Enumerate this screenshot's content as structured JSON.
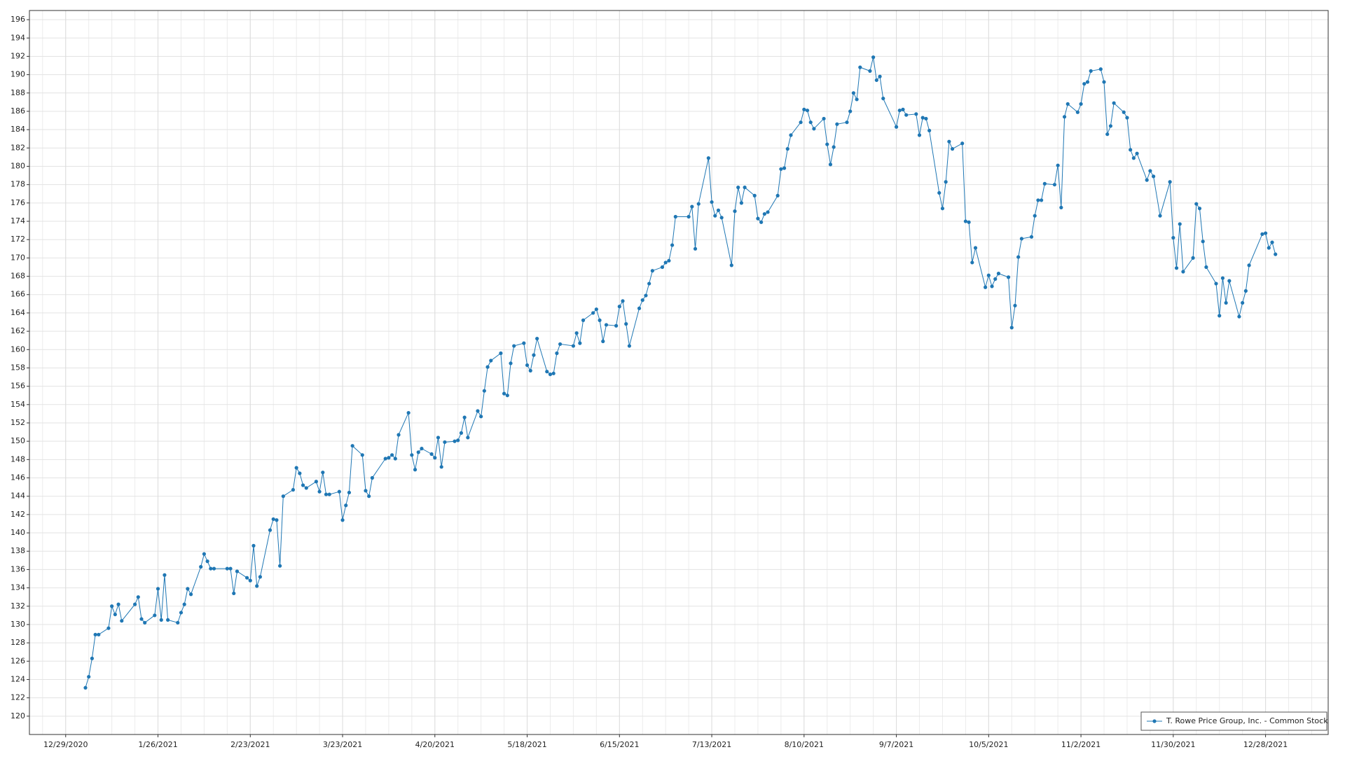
{
  "chart_data": {
    "type": "line",
    "legend": "lower right",
    "grid": true,
    "xlim": [
      "12/18/2020",
      "1/16/2022"
    ],
    "xticks": [
      "12/29/2020",
      "1/26/2021",
      "2/23/2021",
      "3/23/2021",
      "4/20/2021",
      "5/18/2021",
      "6/15/2021",
      "7/13/2021",
      "8/10/2021",
      "9/7/2021",
      "10/5/2021",
      "11/2/2021",
      "11/30/2021",
      "12/28/2021"
    ],
    "ylim": [
      118,
      197
    ],
    "yticks": [
      120,
      122,
      124,
      126,
      128,
      130,
      132,
      134,
      136,
      138,
      140,
      142,
      144,
      146,
      148,
      150,
      152,
      154,
      156,
      158,
      160,
      162,
      164,
      166,
      168,
      170,
      172,
      174,
      176,
      178,
      180,
      182,
      184,
      186,
      188,
      190,
      192,
      194,
      196
    ],
    "x": [
      "1/4/2021",
      "1/5/2021",
      "1/6/2021",
      "1/7/2021",
      "1/8/2021",
      "1/11/2021",
      "1/12/2021",
      "1/13/2021",
      "1/14/2021",
      "1/15/2021",
      "1/19/2021",
      "1/20/2021",
      "1/21/2021",
      "1/22/2021",
      "1/25/2021",
      "1/26/2021",
      "1/27/2021",
      "1/28/2021",
      "1/29/2021",
      "2/1/2021",
      "2/2/2021",
      "2/3/2021",
      "2/4/2021",
      "2/5/2021",
      "2/8/2021",
      "2/9/2021",
      "2/10/2021",
      "2/11/2021",
      "2/12/2021",
      "2/16/2021",
      "2/17/2021",
      "2/18/2021",
      "2/19/2021",
      "2/22/2021",
      "2/23/2021",
      "2/24/2021",
      "2/25/2021",
      "2/26/2021",
      "3/1/2021",
      "3/2/2021",
      "3/3/2021",
      "3/4/2021",
      "3/5/2021",
      "3/8/2021",
      "3/9/2021",
      "3/10/2021",
      "3/11/2021",
      "3/12/2021",
      "3/15/2021",
      "3/16/2021",
      "3/17/2021",
      "3/18/2021",
      "3/19/2021",
      "3/22/2021",
      "3/23/2021",
      "3/24/2021",
      "3/25/2021",
      "3/26/2021",
      "3/29/2021",
      "3/30/2021",
      "3/31/2021",
      "4/1/2021",
      "4/5/2021",
      "4/6/2021",
      "4/7/2021",
      "4/8/2021",
      "4/9/2021",
      "4/12/2021",
      "4/13/2021",
      "4/14/2021",
      "4/15/2021",
      "4/16/2021",
      "4/19/2021",
      "4/20/2021",
      "4/21/2021",
      "4/22/2021",
      "4/23/2021",
      "4/26/2021",
      "4/27/2021",
      "4/28/2021",
      "4/29/2021",
      "4/30/2021",
      "5/3/2021",
      "5/4/2021",
      "5/5/2021",
      "5/6/2021",
      "5/7/2021",
      "5/10/2021",
      "5/11/2021",
      "5/12/2021",
      "5/13/2021",
      "5/14/2021",
      "5/17/2021",
      "5/18/2021",
      "5/19/2021",
      "5/20/2021",
      "5/21/2021",
      "5/24/2021",
      "5/25/2021",
      "5/26/2021",
      "5/27/2021",
      "5/28/2021",
      "6/1/2021",
      "6/2/2021",
      "6/3/2021",
      "6/4/2021",
      "6/7/2021",
      "6/8/2021",
      "6/9/2021",
      "6/10/2021",
      "6/11/2021",
      "6/14/2021",
      "6/15/2021",
      "6/16/2021",
      "6/17/2021",
      "6/18/2021",
      "6/21/2021",
      "6/22/2021",
      "6/23/2021",
      "6/24/2021",
      "6/25/2021",
      "6/28/2021",
      "6/29/2021",
      "6/30/2021",
      "7/1/2021",
      "7/2/2021",
      "7/6/2021",
      "7/7/2021",
      "7/8/2021",
      "7/9/2021",
      "7/12/2021",
      "7/13/2021",
      "7/14/2021",
      "7/15/2021",
      "7/16/2021",
      "7/19/2021",
      "7/20/2021",
      "7/21/2021",
      "7/22/2021",
      "7/23/2021",
      "7/26/2021",
      "7/27/2021",
      "7/28/2021",
      "7/29/2021",
      "7/30/2021",
      "8/2/2021",
      "8/3/2021",
      "8/4/2021",
      "8/5/2021",
      "8/6/2021",
      "8/9/2021",
      "8/10/2021",
      "8/11/2021",
      "8/12/2021",
      "8/13/2021",
      "8/16/2021",
      "8/17/2021",
      "8/18/2021",
      "8/19/2021",
      "8/20/2021",
      "8/23/2021",
      "8/24/2021",
      "8/25/2021",
      "8/26/2021",
      "8/27/2021",
      "8/30/2021",
      "8/31/2021",
      "9/1/2021",
      "9/2/2021",
      "9/3/2021",
      "9/7/2021",
      "9/8/2021",
      "9/9/2021",
      "9/10/2021",
      "9/13/2021",
      "9/14/2021",
      "9/15/2021",
      "9/16/2021",
      "9/17/2021",
      "9/20/2021",
      "9/21/2021",
      "9/22/2021",
      "9/23/2021",
      "9/24/2021",
      "9/27/2021",
      "9/28/2021",
      "9/29/2021",
      "9/30/2021",
      "10/1/2021",
      "10/4/2021",
      "10/5/2021",
      "10/6/2021",
      "10/7/2021",
      "10/8/2021",
      "10/11/2021",
      "10/12/2021",
      "10/13/2021",
      "10/14/2021",
      "10/15/2021",
      "10/18/2021",
      "10/19/2021",
      "10/20/2021",
      "10/21/2021",
      "10/22/2021",
      "10/25/2021",
      "10/26/2021",
      "10/27/2021",
      "10/28/2021",
      "10/29/2021",
      "11/1/2021",
      "11/2/2021",
      "11/3/2021",
      "11/4/2021",
      "11/5/2021",
      "11/8/2021",
      "11/9/2021",
      "11/10/2021",
      "11/11/2021",
      "11/12/2021",
      "11/15/2021",
      "11/16/2021",
      "11/17/2021",
      "11/18/2021",
      "11/19/2021",
      "11/22/2021",
      "11/23/2021",
      "11/24/2021",
      "11/26/2021",
      "11/29/2021",
      "11/30/2021",
      "12/1/2021",
      "12/2/2021",
      "12/3/2021",
      "12/6/2021",
      "12/7/2021",
      "12/8/2021",
      "12/9/2021",
      "12/10/2021",
      "12/13/2021",
      "12/14/2021",
      "12/15/2021",
      "12/16/2021",
      "12/17/2021",
      "12/20/2021",
      "12/21/2021",
      "12/22/2021",
      "12/23/2021",
      "12/27/2021",
      "12/28/2021",
      "12/29/2021",
      "12/30/2021",
      "12/31/2021"
    ],
    "series": [
      {
        "name": "T. Rowe Price Group, Inc. - Common Stock",
        "color": "#1f77b4",
        "values": [
          123.1,
          124.3,
          126.3,
          128.9,
          128.9,
          129.6,
          132.0,
          131.1,
          132.2,
          130.4,
          132.2,
          133.0,
          130.6,
          130.2,
          131.0,
          133.9,
          130.5,
          135.4,
          130.5,
          130.2,
          131.3,
          132.2,
          133.9,
          133.3,
          136.3,
          137.7,
          136.9,
          136.1,
          136.1,
          136.1,
          136.1,
          133.4,
          135.8,
          135.1,
          134.8,
          138.6,
          134.2,
          135.2,
          140.3,
          141.5,
          141.4,
          136.4,
          144.0,
          144.7,
          147.1,
          146.5,
          145.2,
          144.9,
          145.6,
          144.5,
          146.6,
          144.2,
          144.2,
          144.5,
          141.4,
          143.0,
          144.4,
          149.5,
          148.5,
          144.6,
          144.0,
          146.0,
          148.1,
          148.2,
          148.5,
          148.1,
          150.7,
          153.1,
          148.5,
          146.9,
          148.8,
          149.2,
          148.6,
          148.2,
          150.4,
          147.2,
          149.9,
          150.0,
          150.1,
          150.9,
          152.6,
          150.4,
          153.3,
          152.7,
          155.5,
          158.1,
          158.8,
          159.6,
          155.2,
          155.0,
          158.5,
          160.4,
          160.7,
          158.3,
          157.7,
          159.4,
          161.2,
          157.6,
          157.3,
          157.4,
          159.6,
          160.6,
          160.4,
          161.8,
          160.7,
          163.2,
          164.0,
          164.4,
          163.2,
          160.9,
          162.7,
          162.6,
          164.7,
          165.3,
          162.8,
          160.4,
          164.5,
          165.4,
          165.9,
          167.2,
          168.6,
          169.0,
          169.5,
          169.7,
          171.4,
          174.5,
          174.5,
          175.6,
          171.0,
          175.9,
          180.9,
          176.1,
          174.6,
          175.2,
          174.4,
          169.2,
          175.1,
          177.7,
          176.0,
          177.7,
          176.8,
          174.3,
          173.9,
          174.8,
          175.0,
          176.8,
          179.7,
          179.8,
          181.9,
          183.4,
          184.8,
          186.2,
          186.1,
          184.8,
          184.1,
          185.2,
          182.4,
          180.2,
          182.1,
          184.6,
          184.8,
          186.0,
          188.0,
          187.3,
          190.8,
          190.4,
          191.9,
          189.4,
          189.8,
          187.4,
          184.3,
          186.1,
          186.2,
          185.6,
          185.7,
          183.4,
          185.3,
          185.2,
          183.9,
          177.1,
          175.4,
          178.3,
          182.7,
          181.9,
          182.5,
          174.0,
          173.9,
          169.5,
          171.1,
          166.8,
          168.1,
          166.9,
          167.7,
          168.3,
          167.9,
          162.4,
          164.8,
          170.1,
          172.1,
          172.3,
          174.6,
          176.3,
          176.3,
          178.1,
          178.0,
          180.1,
          175.5,
          185.4,
          186.8,
          185.9,
          186.8,
          189.0,
          189.2,
          190.4,
          190.6,
          189.2,
          183.5,
          184.4,
          186.9,
          185.9,
          185.3,
          181.8,
          180.9,
          181.4,
          178.5,
          179.5,
          178.9,
          174.6,
          178.3,
          172.2,
          168.9,
          173.7,
          168.5,
          170.0,
          175.9,
          175.4,
          171.8,
          169.0,
          167.2,
          163.7,
          167.8,
          165.1,
          167.5,
          163.6,
          165.1,
          166.4,
          169.2,
          172.6,
          172.7,
          171.1,
          171.7,
          170.4
        ]
      }
    ]
  }
}
